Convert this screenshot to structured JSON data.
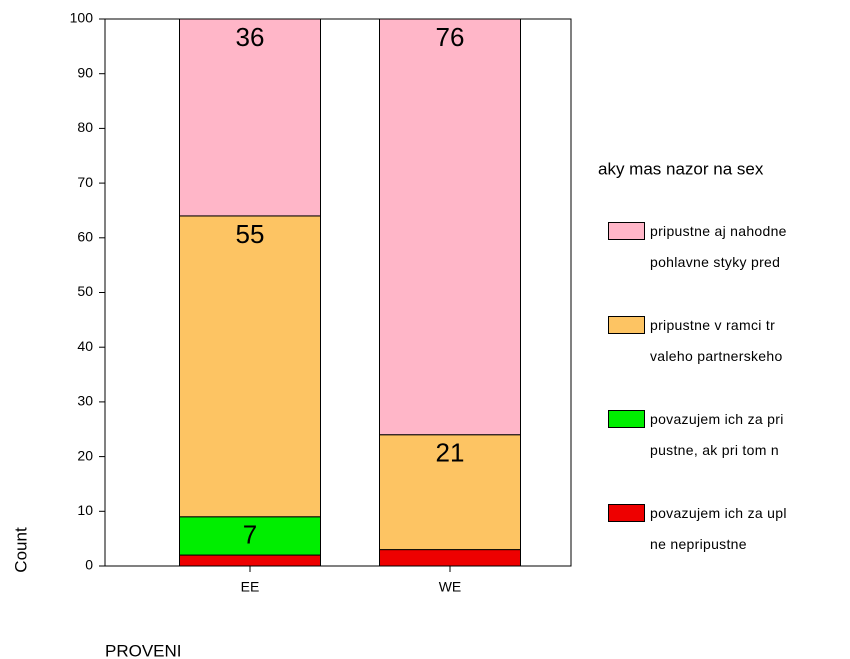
{
  "chart_data": {
    "type": "stacked_bar",
    "categories": [
      "EE",
      "WE"
    ],
    "series": [
      {
        "name": "povazujem ich za upl\nne nepripustne",
        "color": "#ee0000",
        "values": [
          2,
          3
        ]
      },
      {
        "name": "povazujem ich za pri\npustne, ak pri tom n",
        "color": "#00ee00",
        "values": [
          7,
          0
        ]
      },
      {
        "name": "pripustne v ramci tr\nvaleho partnerskeho",
        "color": "#fdc463",
        "values": [
          55,
          21
        ]
      },
      {
        "name": "pripustne aj nahodne\n pohlavne styky pred",
        "color": "#ffb6c8",
        "values": [
          36,
          76
        ]
      }
    ],
    "ylim": [
      0,
      100
    ],
    "yticks": [
      0,
      10,
      20,
      30,
      40,
      50,
      60,
      70,
      80,
      90,
      100
    ],
    "ylabel": "Count",
    "xlabel": "PROVENI",
    "legend_title": "aky mas nazor na sex",
    "legend": "right"
  }
}
